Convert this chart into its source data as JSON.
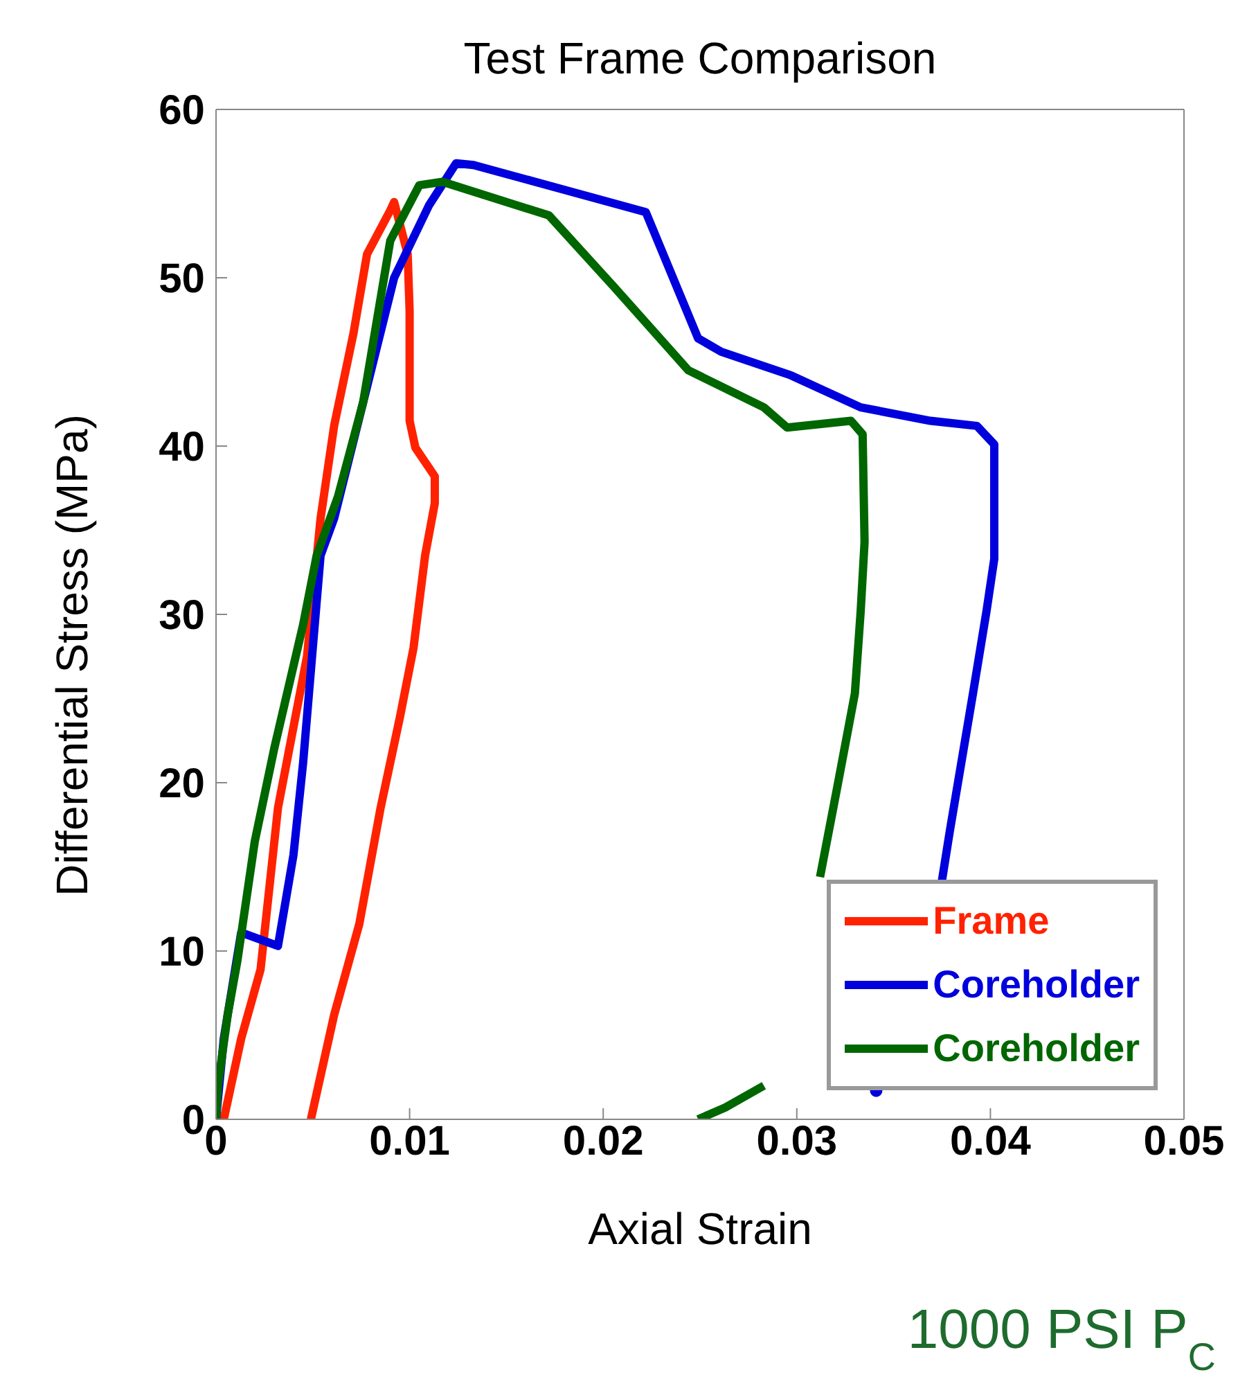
{
  "chart_data": {
    "type": "line",
    "title": "Test Frame Comparison",
    "xlabel": "Axial Strain",
    "ylabel": "Differential Stress (MPa)",
    "xlim": [
      0,
      0.05
    ],
    "xticks": [
      0,
      0.01,
      0.02,
      0.03,
      0.04,
      0.05
    ],
    "ylim": [
      0,
      60
    ],
    "yticks": [
      0,
      10,
      20,
      30,
      40,
      50,
      60
    ],
    "grid": false,
    "legend": "bottom right",
    "marker": "none",
    "line_style": "solid",
    "annotations": [
      "1000 PSI P$_{C}$"
    ],
    "series": [
      {
        "name": "Frame",
        "color": "#ff2200",
        "x": [
          0,
          0.0004,
          0.0013,
          0.0023,
          0.0032,
          0.0047,
          0.0054,
          0.0061,
          0.0071,
          0.0078,
          0.009,
          0.0092,
          0.0099,
          0.01,
          0.01,
          0.0103,
          0.0113,
          0.0113,
          0.0108,
          0.0102,
          0.0095,
          0.0085,
          0.0074,
          0.0061,
          0.0049
        ],
        "values": [
          0,
          0,
          4.8,
          8.9,
          18.5,
          27.5,
          35.7,
          41.2,
          46.7,
          51.4,
          54,
          54.5,
          51.4,
          48,
          41.5,
          39.9,
          38.2,
          36.6,
          33.5,
          28,
          23.9,
          18.5,
          11.6,
          6.2,
          0
        ]
      },
      {
        "name": "Coreholder",
        "color": "#0000dd",
        "x": [
          0,
          0.0004,
          0.0013,
          0.0032,
          0.004,
          0.0045,
          0.0054,
          0.0061,
          0.0076,
          0.0092,
          0.011,
          0.0124,
          0.0133,
          0.0222,
          0.0249,
          0.0261,
          0.0297,
          0.0333,
          0.0369,
          0.0393,
          0.0402,
          0.0402,
          0.0398,
          0.0391,
          0.0379,
          0.0375,
          0.036,
          0.0341
        ],
        "values": [
          0,
          4.8,
          11.1,
          10.3,
          15.7,
          21.2,
          33.5,
          35.7,
          42.6,
          50,
          54.3,
          56.8,
          56.7,
          53.9,
          46.4,
          45.6,
          44.2,
          42.3,
          41.5,
          41.2,
          40.1,
          33.3,
          30.2,
          25.3,
          17.1,
          14.2,
          null,
          1.7
        ]
      },
      {
        "name": "Coreholder",
        "color": "#006600",
        "x": [
          0,
          0.0001,
          0.0006,
          0.0011,
          0.002,
          0.003,
          0.0045,
          0.0052,
          0.0063,
          0.0076,
          0.009,
          0.0105,
          0.0117,
          0.0172,
          0.0206,
          0.0244,
          0.0283,
          0.0295,
          0.0328,
          0.0334,
          0.0335,
          0.0333,
          0.033,
          0.0321,
          0.0312,
          0.03,
          0.0283,
          0.0263,
          0.0249
        ],
        "values": [
          0,
          2,
          6.2,
          9.4,
          16.5,
          22,
          29.4,
          33.5,
          37,
          42.6,
          52.2,
          55.5,
          55.7,
          53.7,
          49.4,
          44.5,
          42.3,
          41.1,
          41.5,
          40.7,
          34.3,
          30.2,
          25.3,
          19.8,
          14.4,
          null,
          2,
          0.7,
          0
        ]
      }
    ]
  }
}
